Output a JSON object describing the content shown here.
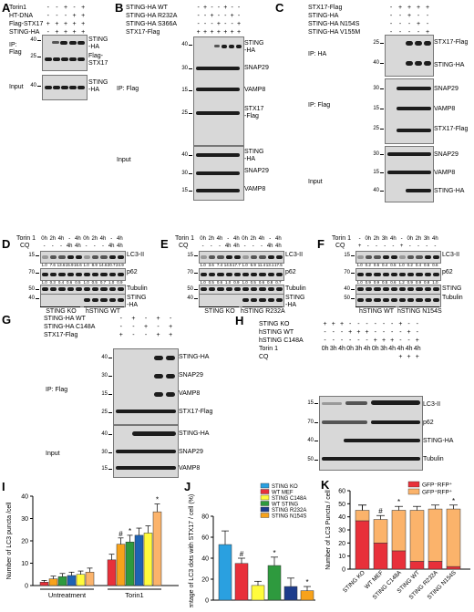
{
  "panels": {
    "A": {
      "label": "A",
      "rows": [
        {
          "name": "Torin1",
          "signs": [
            "-",
            "-",
            "+",
            "-",
            "+"
          ]
        },
        {
          "name": "HT-DNA",
          "signs": [
            "-",
            "-",
            "-",
            "+",
            "+"
          ]
        },
        {
          "name": "Flag-STX17",
          "signs": [
            "+",
            "+",
            "+",
            "+",
            "+"
          ]
        },
        {
          "name": "STING-HA",
          "signs": [
            "-",
            "+",
            "+",
            "+",
            "+"
          ]
        }
      ],
      "ip": "IP:\nFlag",
      "input": "Input",
      "blot_labels": [
        "STING\n-HA",
        "Flag-\nSTX17",
        "STING\n-HA"
      ],
      "mw": [
        "40",
        "25",
        "40"
      ]
    },
    "B": {
      "label": "B",
      "rows": [
        {
          "name": "STING-HA WT",
          "signs": [
            "-",
            "+",
            "-",
            "-",
            "+",
            "-",
            "-"
          ]
        },
        {
          "name": "STING-HA R232A",
          "signs": [
            "-",
            "-",
            "+",
            "-",
            "-",
            "+",
            "-"
          ]
        },
        {
          "name": "STING-HA S366A",
          "signs": [
            "-",
            "-",
            "-",
            "+",
            "-",
            "-",
            "+"
          ]
        },
        {
          "name": "STX17-Flag",
          "signs": [
            "+",
            "+",
            "+",
            "+",
            "+",
            "+",
            "+"
          ]
        }
      ],
      "ip": "IP: Flag",
      "input": "Input",
      "blot_labels": [
        "STING\n-HA",
        "SNAP29",
        "VAMP8",
        "STX17\n-Flag",
        "STING\n-HA",
        "SNAP29",
        "VAMP8"
      ],
      "mw": [
        "40",
        "30",
        "15",
        "25",
        "40",
        "30",
        "15"
      ]
    },
    "C": {
      "label": "C",
      "rows": [
        {
          "name": "STX17-Flag",
          "signs": [
            "-",
            "+",
            "+",
            "+",
            "+"
          ]
        },
        {
          "name": "STING-HA",
          "signs": [
            "-",
            "-",
            "+",
            "-",
            "-"
          ]
        },
        {
          "name": "STING-HA N154S",
          "signs": [
            "-",
            "-",
            "-",
            "+",
            "-"
          ]
        },
        {
          "name": "STING-HA V155M",
          "signs": [
            "-",
            "-",
            "-",
            "-",
            "+"
          ]
        }
      ],
      "ip_ha": "IP: HA",
      "ip_flag": "IP: Flag",
      "input": "Input",
      "blot_labels": [
        "STX17-Flag",
        "STING-HA",
        "SNAP29",
        "VAMP8",
        "STX17-Flag",
        "SNAP29",
        "VAMP8",
        "STING-HA"
      ],
      "mw": [
        "25",
        "40",
        "30",
        "15",
        "25",
        "30",
        "15",
        "40"
      ]
    },
    "D": {
      "label": "D",
      "torin": "Torin 1",
      "cq": "CQ",
      "torin_row": [
        "0h",
        "2h",
        "4h",
        "-",
        "4h",
        "0h",
        "2h",
        "4h",
        "-",
        "4h"
      ],
      "cq_row": [
        "-",
        "-",
        "-",
        "4h",
        "4h",
        "-",
        "-",
        "-",
        "4h",
        "4h"
      ],
      "lc3_q": [
        "1.0",
        "7.6",
        "13.6",
        "15.9",
        "16.6",
        "1.0",
        "8.9",
        "14.6",
        "20.7",
        "24.9"
      ],
      "p62_q": [
        "1.0",
        "0.3",
        "0.4",
        "0.6",
        "0.5",
        "1.0",
        "0.5",
        "0.7",
        "1.0",
        "0.9"
      ],
      "blot_labels": [
        "LC3-II",
        "p62",
        "Tubulin",
        "STING\n-HA"
      ],
      "mw": [
        "15",
        "70",
        "50",
        "40"
      ],
      "groups": [
        "STING KO",
        "hSTING WT"
      ]
    },
    "E": {
      "label": "E",
      "torin": "Torin 1",
      "cq": "CQ",
      "torin_row": [
        "0h",
        "2h",
        "4h",
        "-",
        "4h",
        "0h",
        "2h",
        "4h",
        "-",
        "4h"
      ],
      "cq_row": [
        "-",
        "-",
        "-",
        "4h",
        "4h",
        "-",
        "-",
        "-",
        "4h",
        "4h"
      ],
      "lc3_q": [
        "1.0",
        "3.6",
        "7.4",
        "14.5",
        "17.7",
        "1.0",
        "6.9",
        "11.4",
        "13.1",
        "17.5"
      ],
      "p62_q": [
        "1.0",
        "0.5",
        "0.6",
        "1.0",
        "0.9",
        "1.0",
        "0.5",
        "0.6",
        "0.8",
        "0.7"
      ],
      "blot_labels": [
        "LC3-II",
        "p62",
        "Tubulin",
        "STING\n-HA"
      ],
      "mw": [
        "15",
        "70",
        "50",
        "40"
      ],
      "groups": [
        "STING KO",
        "hSTING R232A"
      ]
    },
    "F": {
      "label": "F",
      "torin": "Torin 1",
      "cq": "CQ",
      "torin_row": [
        "-",
        "0h",
        "2h",
        "3h",
        "4h",
        "-",
        "0h",
        "2h",
        "3h",
        "4h"
      ],
      "cq_row": [
        "+",
        "-",
        "-",
        "-",
        "-",
        "+",
        "-",
        "-",
        "-",
        "-"
      ],
      "lc3_q": [
        "1.0",
        "0.2",
        "0.5",
        "0.4",
        "0.5",
        "1.0",
        "0.2",
        "0.4",
        "0.5",
        "0.6"
      ],
      "p62_q": [
        "1.0",
        "0.9",
        "0.9",
        "0.5",
        "0.6",
        "1.2",
        "0.9",
        "0.9",
        "0.8",
        "1.0"
      ],
      "blot_labels": [
        "LC3-II",
        "p62",
        "STING",
        "Tubulin"
      ],
      "mw": [
        "15",
        "70",
        "40",
        "50"
      ],
      "groups": [
        "hSTING WT",
        "hSTING N154S"
      ]
    },
    "G": {
      "label": "G",
      "rows": [
        {
          "name": "STING-HA WT",
          "signs": [
            "-",
            "+",
            "-",
            "+",
            "-"
          ]
        },
        {
          "name": "STING-HA C148A",
          "signs": [
            "-",
            "-",
            "+",
            "-",
            "+"
          ]
        },
        {
          "name": "STX17-Flag",
          "signs": [
            "+",
            "-",
            "-",
            "+",
            "+"
          ]
        }
      ],
      "ip": "IP: Flag",
      "input": "Input",
      "blot_labels": [
        "STING-HA",
        "SNAP29",
        "VAMP8",
        "STX17-Flag",
        "STING-HA",
        "SNAP29",
        "VAMP8"
      ],
      "mw": [
        "40",
        "30",
        "15",
        "25",
        "40",
        "30",
        "15"
      ]
    },
    "H": {
      "label": "H",
      "rows": [
        {
          "name": "STING KO",
          "signs": [
            "+",
            "+",
            "+",
            "-",
            "-",
            "-",
            "-",
            "-",
            "-",
            "+",
            "-",
            "-"
          ]
        },
        {
          "name": "hSTING WT",
          "signs": [
            "-",
            "-",
            "-",
            "+",
            "+",
            "+",
            "-",
            "-",
            "-",
            "-",
            "+",
            "-"
          ]
        },
        {
          "name": "hSTING C148A",
          "signs": [
            "-",
            "-",
            "-",
            "-",
            "-",
            "-",
            "+",
            "+",
            "+",
            "-",
            "-",
            "+"
          ]
        },
        {
          "name": "Torin 1",
          "signs": [
            "0h",
            "3h",
            "4h",
            "0h",
            "3h",
            "4h",
            "0h",
            "3h",
            "4h",
            "4h",
            "4h",
            "4h"
          ]
        },
        {
          "name": "CQ",
          "signs": [
            "",
            "",
            "",
            "",
            "",
            "",
            "",
            "",
            "",
            "+",
            "+",
            "+"
          ]
        }
      ],
      "blot_labels": [
        "LC3-II",
        "p62",
        "STING-HA",
        "Tubulin"
      ],
      "mw": [
        "15",
        "70",
        "40",
        "50"
      ]
    }
  },
  "chart_I": {
    "label": "I",
    "chart_data": {
      "type": "bar",
      "categories": [
        "Untreatment",
        "Torin1"
      ],
      "ylabel": "Number of LC3 puncta /cell",
      "ylim": [
        0,
        40
      ],
      "yticks": [
        0,
        10,
        20,
        30,
        40
      ],
      "series": [
        {
          "values": [
            1.5,
            11.5
          ],
          "errors": [
            0.8,
            2.5
          ],
          "color": "#e8303a"
        },
        {
          "values": [
            3.0,
            18.5
          ],
          "errors": [
            1.2,
            2.8
          ],
          "color": "#f7a21b"
        },
        {
          "values": [
            4.0,
            19.5
          ],
          "errors": [
            1.4,
            3.0
          ],
          "color": "#2e9a3e"
        },
        {
          "values": [
            4.5,
            22.5
          ],
          "errors": [
            1.5,
            3.2
          ],
          "color": "#1e63b4"
        },
        {
          "values": [
            5.0,
            23.5
          ],
          "errors": [
            1.5,
            3.2
          ],
          "color": "#fffb3c"
        },
        {
          "values": [
            6.0,
            33.0
          ],
          "errors": [
            1.8,
            3.5
          ],
          "color": "#fbb36b"
        }
      ],
      "annotations": [
        "#",
        "*",
        "*"
      ]
    }
  },
  "chart_J": {
    "label": "J",
    "chart_data": {
      "type": "bar",
      "ylabel": "Percentage of LC3 dots with STX17 / cell (%)",
      "ylim": [
        0,
        80
      ],
      "yticks": [
        0,
        20,
        40,
        60,
        80
      ],
      "categories": [
        "STING KO",
        "WT MEF",
        "STING C148A",
        "WT STING",
        "STING R232A",
        "STING N154S"
      ],
      "values": [
        53,
        35,
        14,
        33,
        13,
        9
      ],
      "errors": [
        13,
        5,
        4,
        8,
        8,
        4
      ],
      "colors": [
        "#2aa0e0",
        "#e8303a",
        "#fffb3c",
        "#2e9a3e",
        "#1d3c8c",
        "#f7a21b"
      ],
      "annotations": [
        "",
        "#",
        "",
        "*",
        "",
        "*"
      ]
    }
  },
  "chart_K": {
    "label": "K",
    "chart_data": {
      "type": "bar",
      "stacked": true,
      "ylabel": "Number of LC3 Puncta / cell",
      "ylim": [
        0,
        60
      ],
      "yticks": [
        0,
        10,
        20,
        30,
        40,
        50,
        60
      ],
      "categories": [
        "STING KO",
        "WT MEF",
        "STING C148A",
        "STING WT",
        "STING R232A",
        "STING N154S"
      ],
      "series": [
        {
          "name": "GFP+RFP+",
          "values": [
            37,
            20,
            14,
            6,
            6,
            2
          ],
          "errors": [
            12,
            3,
            3,
            0,
            0,
            0
          ],
          "color": "#e8303a"
        },
        {
          "name": "GFP-RFP+",
          "values": [
            8,
            18,
            31,
            39,
            40,
            44
          ],
          "errors": [
            4,
            3,
            3,
            3,
            3,
            3
          ],
          "color": "#fbb36b"
        }
      ],
      "legend_labels": [
        "GFP⁻RFP⁺",
        "GFP⁺RFP⁺"
      ],
      "annotations": [
        "",
        "#",
        "*",
        "",
        "",
        "*"
      ]
    }
  }
}
